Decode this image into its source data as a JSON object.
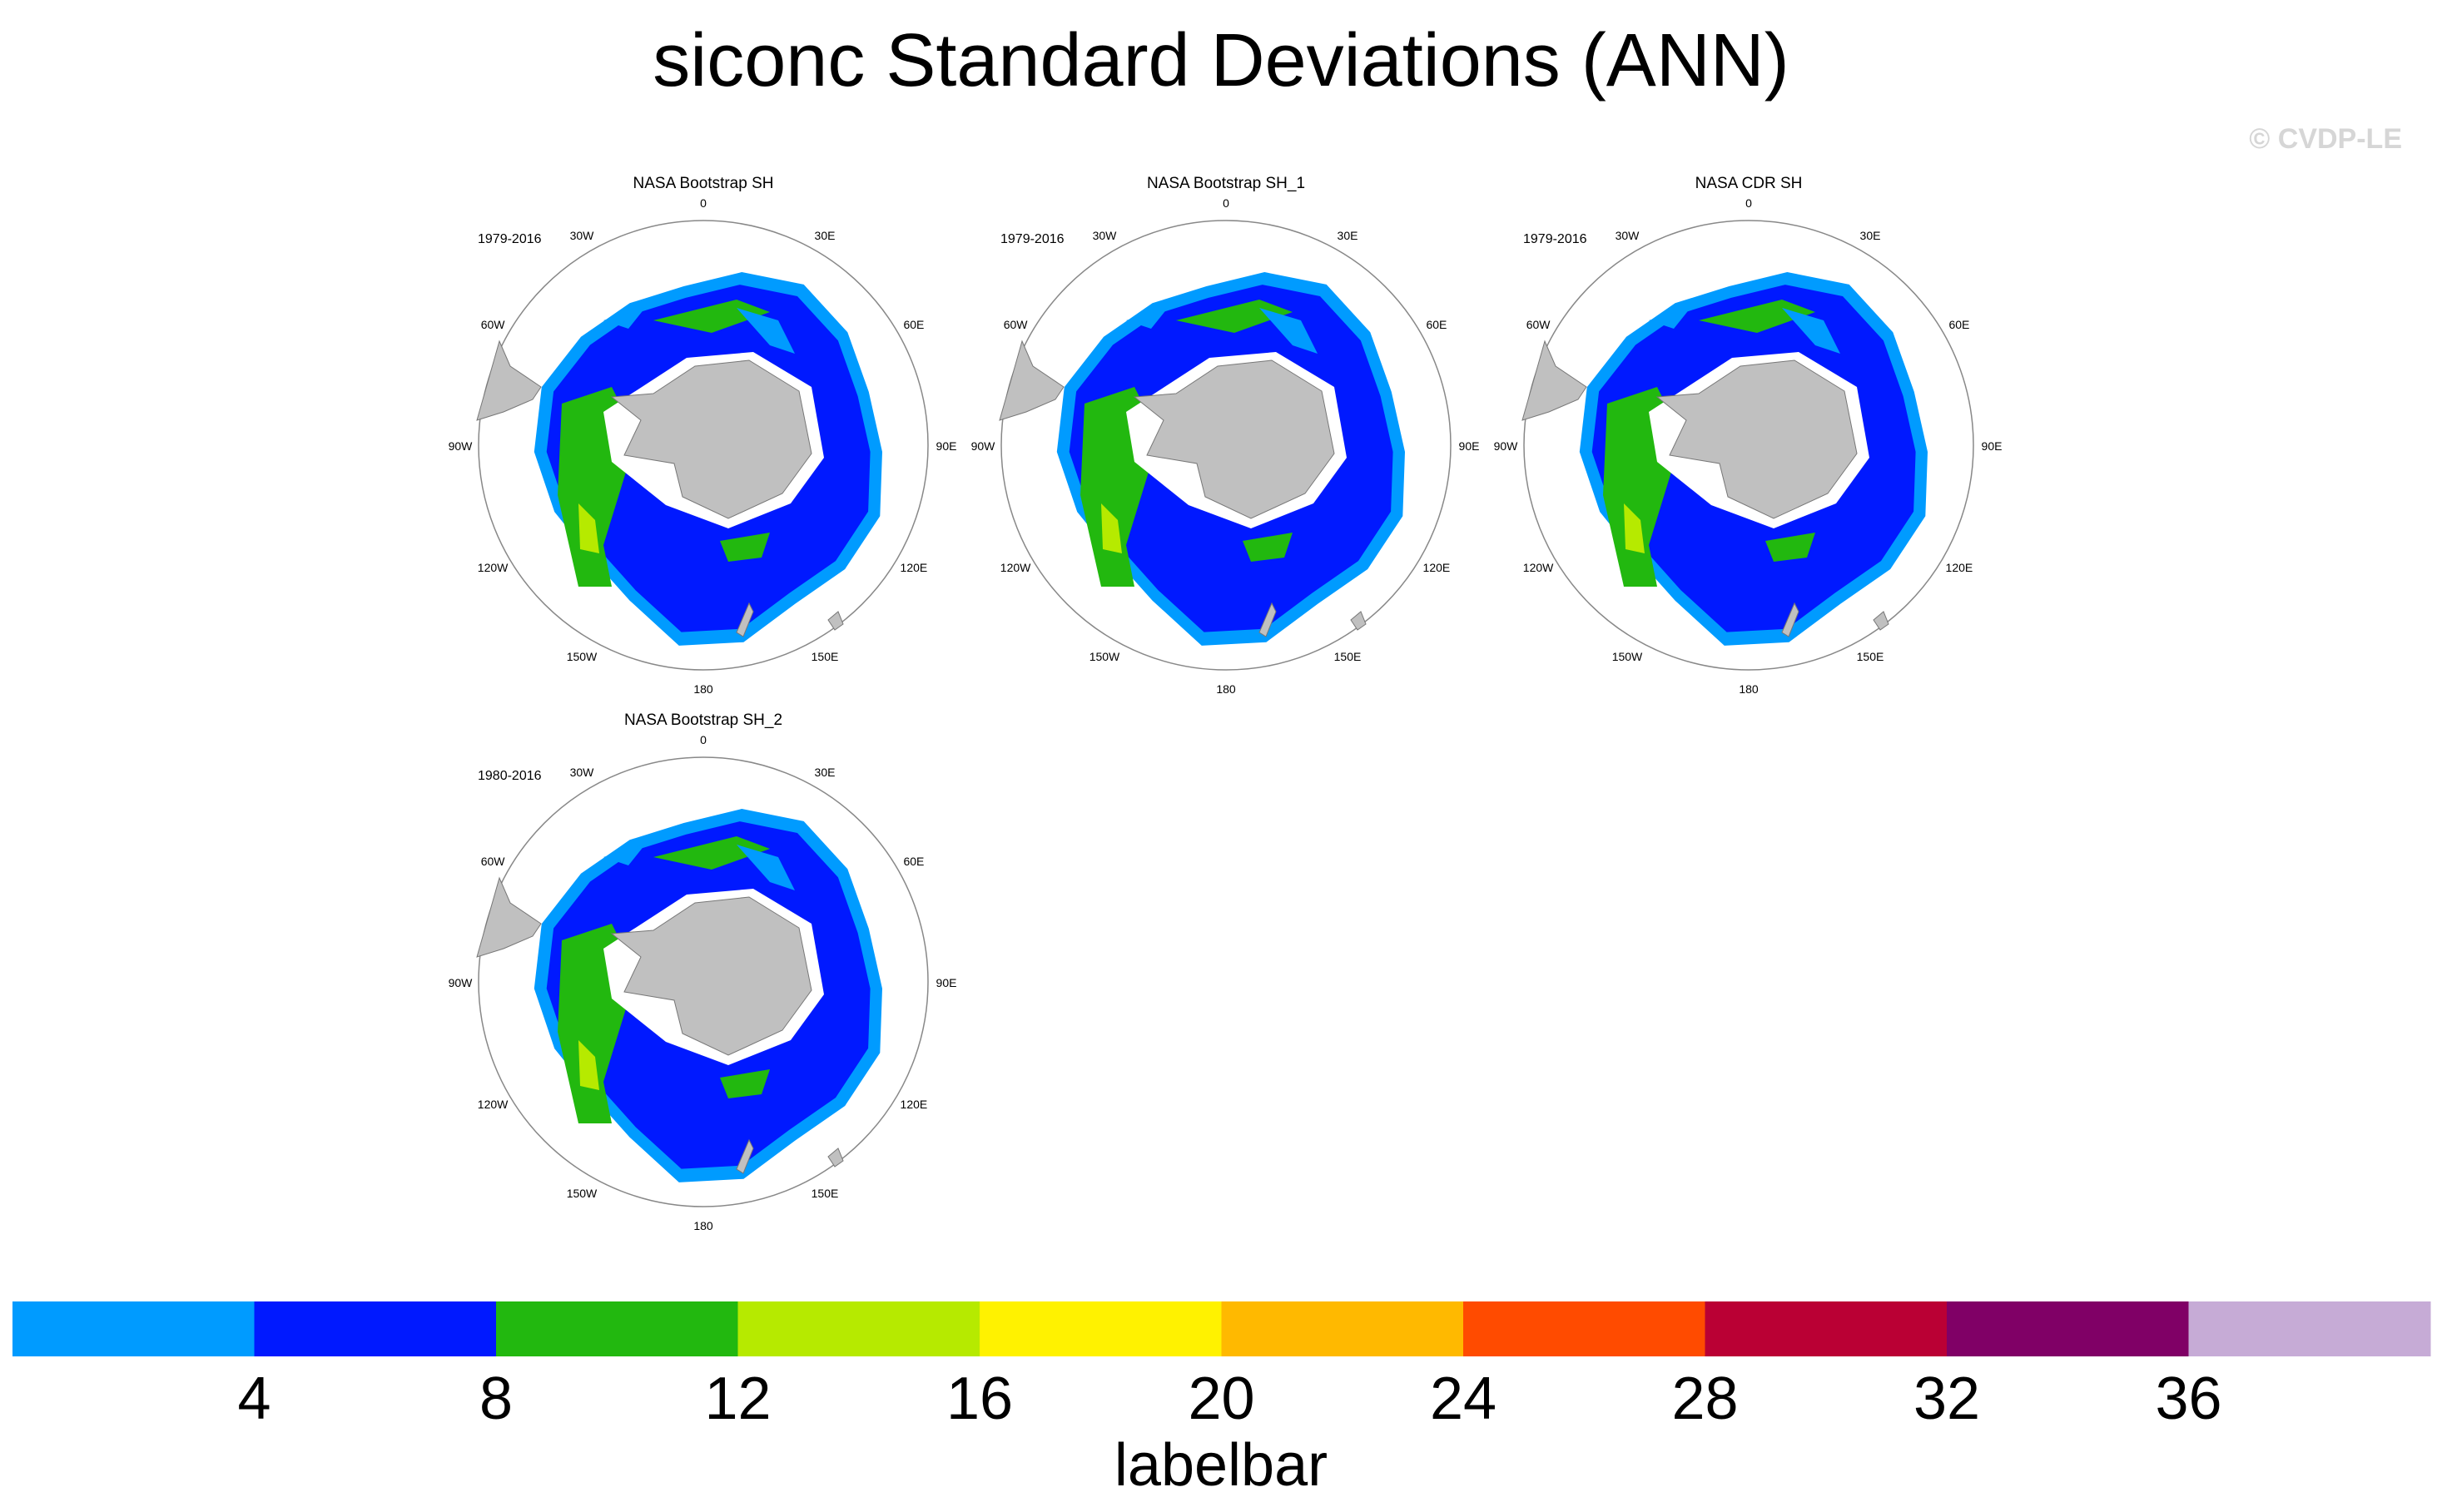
{
  "title": "siconc Standard Deviations (ANN)",
  "watermark": "© CVDP-LE",
  "longitude_labels": [
    "0",
    "30E",
    "60E",
    "90E",
    "120E",
    "150E",
    "180",
    "150W",
    "120W",
    "90W",
    "60W",
    "30W"
  ],
  "panels": [
    {
      "name": "NASA Bootstrap SH",
      "years": "1979-2016"
    },
    {
      "name": "NASA Bootstrap SH_1",
      "years": "1979-2016"
    },
    {
      "name": "NASA CDR SH",
      "years": "1979-2016"
    },
    {
      "name": "NASA Bootstrap SH_2",
      "years": "1980-2016"
    }
  ],
  "labelbar": {
    "title": "labelbar",
    "ticks": [
      "4",
      "8",
      "12",
      "16",
      "20",
      "24",
      "28",
      "32",
      "36"
    ],
    "colors": [
      "#009bff",
      "#0019ff",
      "#22b80f",
      "#b6ea00",
      "#fff200",
      "#ffb900",
      "#ff4b00",
      "#ba0034",
      "#800066",
      "#c6abd6"
    ]
  },
  "chart_data": {
    "type": "heatmap",
    "title": "siconc Standard Deviations (ANN)",
    "variable": "siconc",
    "projection": "south polar stereographic",
    "panels": [
      {
        "name": "NASA Bootstrap SH",
        "years": "1979-2016"
      },
      {
        "name": "NASA Bootstrap SH_1",
        "years": "1979-2016"
      },
      {
        "name": "NASA CDR SH",
        "years": "1979-2016"
      },
      {
        "name": "NASA Bootstrap SH_2",
        "years": "1980-2016"
      }
    ],
    "colorbar": {
      "levels": [
        4,
        8,
        12,
        16,
        20,
        24,
        28,
        32,
        36
      ],
      "colors": [
        "#009bff",
        "#0019ff",
        "#22b80f",
        "#b6ea00",
        "#fff200",
        "#ffb900",
        "#ff4b00",
        "#ba0034",
        "#800066",
        "#c6abd6"
      ],
      "label": "labelbar"
    }
  }
}
